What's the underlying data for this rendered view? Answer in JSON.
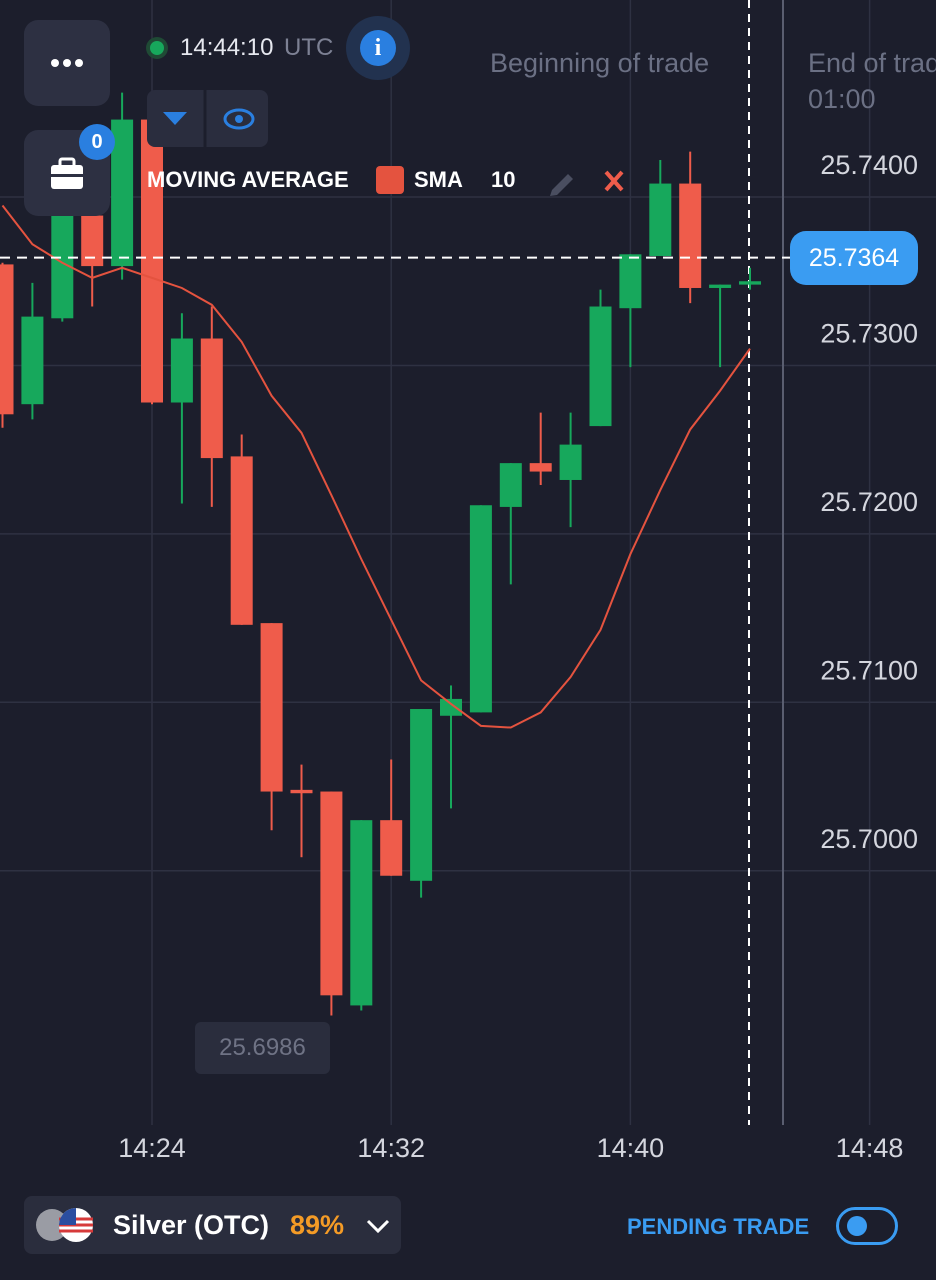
{
  "header": {
    "time": "14:44:10",
    "timezone": "UTC",
    "badge": "0",
    "beginning": "Beginning of trade",
    "end": "End of trade",
    "end_time": "01:00"
  },
  "chart_data": {
    "type": "candlestick",
    "legend_title": "MOVING AVERAGE",
    "categories": [
      null,
      null,
      null,
      null,
      null,
      "14:24",
      null,
      null,
      null,
      null,
      null,
      null,
      null,
      "14:32",
      null,
      null,
      null,
      null,
      null,
      null,
      null,
      "14:40",
      null,
      null,
      null,
      null,
      null,
      null,
      null,
      "14:48"
    ],
    "open": [
      25.736,
      25.7277,
      25.7328,
      25.7389,
      25.7359,
      25.7446,
      25.7278,
      25.7316,
      25.7246,
      25.7147,
      25.7048,
      25.7047,
      25.692,
      25.703,
      25.6994,
      25.7092,
      25.7094,
      25.7216,
      25.7242,
      25.7232,
      25.7264,
      25.7334,
      25.7365,
      25.7408,
      25.7346,
      25.7348,
      null,
      null,
      null,
      null
    ],
    "high": [
      25.7361,
      25.7349,
      25.7398,
      25.7392,
      25.7462,
      25.7446,
      25.7331,
      25.7335,
      25.7259,
      25.7147,
      25.7063,
      25.7047,
      25.703,
      25.7066,
      25.7096,
      25.711,
      25.7217,
      25.7242,
      25.7272,
      25.7272,
      25.7345,
      25.7366,
      25.7422,
      25.7427,
      25.7348,
      25.7358,
      null,
      null,
      null,
      null
    ],
    "low": [
      25.7263,
      25.7268,
      25.7326,
      25.7335,
      25.7351,
      25.7277,
      25.7218,
      25.7216,
      25.7146,
      25.7024,
      25.7008,
      25.6914,
      25.6917,
      25.6997,
      25.6984,
      25.7037,
      25.7094,
      25.717,
      25.7229,
      25.7204,
      25.7264,
      25.7299,
      25.7365,
      25.7337,
      25.7299,
      25.7345,
      null,
      null,
      null,
      null
    ],
    "close": [
      25.7271,
      25.7329,
      25.7389,
      25.7359,
      25.7446,
      25.7278,
      25.7316,
      25.7245,
      25.7146,
      25.7047,
      25.7046,
      25.6926,
      25.703,
      25.6997,
      25.7096,
      25.7102,
      25.7217,
      25.7242,
      25.7237,
      25.7253,
      25.7335,
      25.7366,
      25.7408,
      25.7346,
      25.7348,
      25.735,
      null,
      null,
      null,
      null
    ],
    "up_color": "#17a85c",
    "down_color": "#ef5c4b",
    "series": [
      {
        "name": "SMA",
        "period": 10,
        "color": "#e4533f",
        "values": [
          25.7395,
          25.7372,
          25.7361,
          25.7352,
          25.7358,
          25.7352,
          25.7346,
          25.7336,
          25.7314,
          25.7282,
          25.726,
          25.7223,
          25.7185,
          25.7149,
          25.7113,
          25.7099,
          25.7086,
          25.7085,
          25.7094,
          25.7115,
          25.7143,
          25.7188,
          25.7226,
          25.7262,
          25.7285,
          25.731,
          null,
          null,
          null,
          null
        ]
      }
    ],
    "ylim": [
      25.6849,
      25.7517
    ],
    "yticks": [
      {
        "value": 25.74,
        "label": "25.7400"
      },
      {
        "value": 25.73,
        "label": "25.7300"
      },
      {
        "value": 25.72,
        "label": "25.7200"
      },
      {
        "value": 25.71,
        "label": "25.7100"
      },
      {
        "value": 25.7,
        "label": "25.7000"
      }
    ],
    "grid": true,
    "current_price": 25.7364,
    "min_price": 25.6986
  },
  "footer": {
    "asset": "Silver (OTC)",
    "payout": "89%",
    "pending": "PENDING TRADE"
  }
}
